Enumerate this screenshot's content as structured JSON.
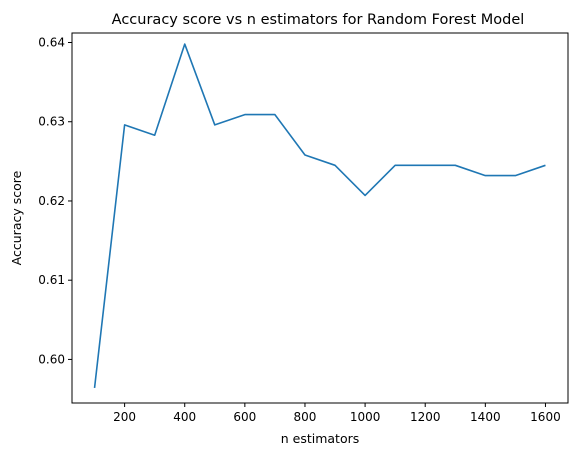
{
  "chart_data": {
    "type": "line",
    "title": "Accuracy score vs n estimators for Random Forest Model",
    "xlabel": "n estimators",
    "ylabel": "Accuracy score",
    "xlim": [
      25,
      1675
    ],
    "ylim": [
      0.5945,
      0.6412
    ],
    "xticks": [
      200,
      400,
      600,
      800,
      1000,
      1200,
      1400,
      1600
    ],
    "yticks": [
      0.6,
      0.61,
      0.62,
      0.63,
      0.64
    ],
    "xtick_labels": [
      "200",
      "400",
      "600",
      "800",
      "1000",
      "1200",
      "1400",
      "1600"
    ],
    "ytick_labels": [
      "0.60",
      "0.61",
      "0.62",
      "0.63",
      "0.64"
    ],
    "grid": false,
    "line_color": "#1f77b4",
    "series": [
      {
        "x": [
          100,
          200,
          300,
          400,
          500,
          600,
          700,
          800,
          900,
          1000,
          1100,
          1200,
          1300,
          1400,
          1500,
          1600
        ],
        "values": [
          0.5964,
          0.6296,
          0.6283,
          0.6398,
          0.6296,
          0.6309,
          0.6309,
          0.6258,
          0.6245,
          0.6207,
          0.6245,
          0.6245,
          0.6245,
          0.6232,
          0.6232,
          0.6245
        ]
      }
    ]
  }
}
